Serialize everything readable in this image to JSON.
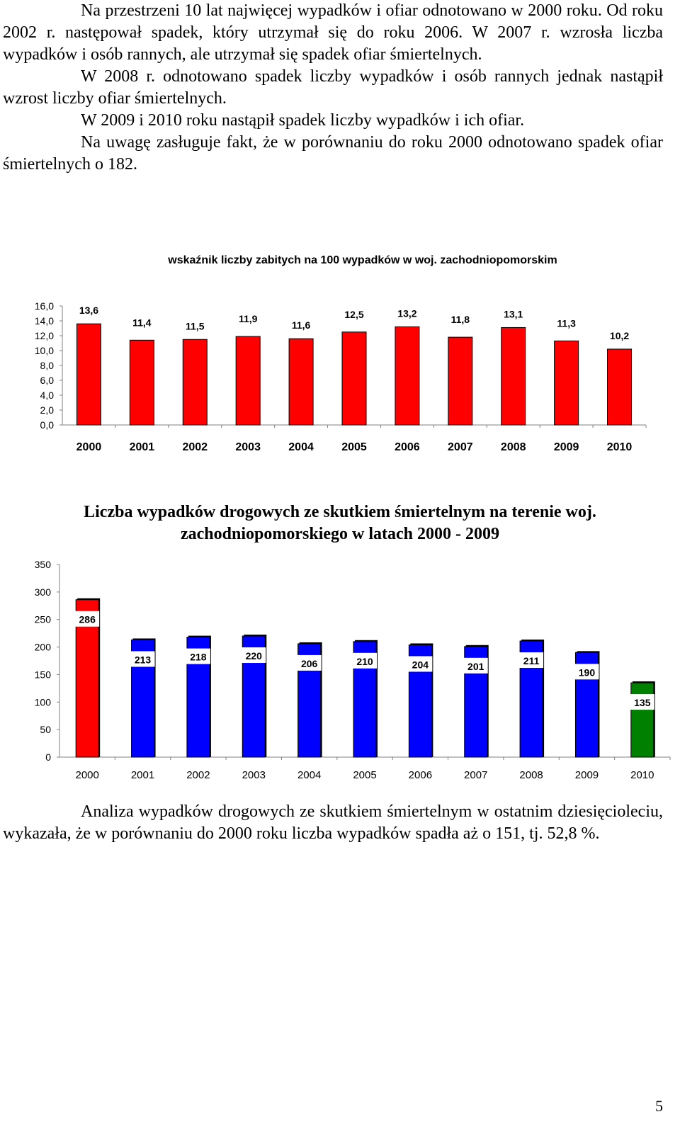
{
  "intro_paragraphs": [
    "Na przestrzeni 10 lat najwięcej wypadków i ofiar odnotowano w 2000 roku. Od roku 2002 r. następował spadek, który utrzymał się do roku 2006. W 2007 r. wzrosła liczba wypadków i osób rannych, ale utrzymał się spadek ofiar śmiertelnych.",
    "W 2008 r. odnotowano spadek liczby wypadków i osób rannych jednak nastąpił wzrost liczby ofiar śmiertelnych.",
    "W 2009 i 2010 roku nastąpił spadek liczby wypadków i ich ofiar.",
    "Na uwagę zasługuje fakt, że w porównaniu do roku 2000 odnotowano spadek ofiar śmiertelnych o 182."
  ],
  "outro_paragraph": "Analiza wypadków drogowych ze skutkiem śmiertelnym w ostatnim dziesięcioleciu, wykazała, że w porównaniu do 2000 roku liczba wypadków spadła aż o 151, tj. 52,8 %.",
  "page_number": "5",
  "colors": {
    "red": "#ff0000",
    "blue": "#0000ff",
    "green": "#008000"
  },
  "chart_data": [
    {
      "type": "bar",
      "title": "wskaźnik liczby zabitych na 100 wypadków w woj. zachodniopomorskim",
      "categories": [
        "2000",
        "2001",
        "2002",
        "2003",
        "2004",
        "2005",
        "2006",
        "2007",
        "2008",
        "2009",
        "2010"
      ],
      "values": [
        13.6,
        11.4,
        11.5,
        11.9,
        11.6,
        12.5,
        13.2,
        11.8,
        13.1,
        11.3,
        10.2
      ],
      "data_labels": [
        "13,6",
        "11,4",
        "11,5",
        "11,9",
        "11,6",
        "12,5",
        "13,2",
        "11,8",
        "13,1",
        "11,3",
        "10,2"
      ],
      "ylim": [
        0,
        16
      ],
      "ytick_labels": [
        "0,0",
        "2,0",
        "4,0",
        "6,0",
        "8,0",
        "10,0",
        "12,0",
        "14,0",
        "16,0"
      ],
      "bar_color": "#ff0000",
      "xlabel": "",
      "ylabel": ""
    },
    {
      "type": "bar",
      "title": "Liczba wypadków drogowych ze skutkiem śmiertelnym na terenie woj. zachodniopomorskiego w latach 2000 - 2009",
      "categories": [
        "2000",
        "2001",
        "2002",
        "2003",
        "2004",
        "2005",
        "2006",
        "2007",
        "2008",
        "2009",
        "2010"
      ],
      "values": [
        286,
        213,
        218,
        220,
        206,
        210,
        204,
        201,
        211,
        190,
        135
      ],
      "data_labels": [
        "286",
        "213",
        "218",
        "220",
        "206",
        "210",
        "204",
        "201",
        "211",
        "190",
        "135"
      ],
      "bar_colors": [
        "#ff0000",
        "#0000ff",
        "#0000ff",
        "#0000ff",
        "#0000ff",
        "#0000ff",
        "#0000ff",
        "#0000ff",
        "#0000ff",
        "#0000ff",
        "#008000"
      ],
      "ylim": [
        0,
        350
      ],
      "ytick_labels": [
        "0",
        "50",
        "100",
        "150",
        "200",
        "250",
        "300",
        "350"
      ],
      "xlabel": "",
      "ylabel": ""
    }
  ]
}
